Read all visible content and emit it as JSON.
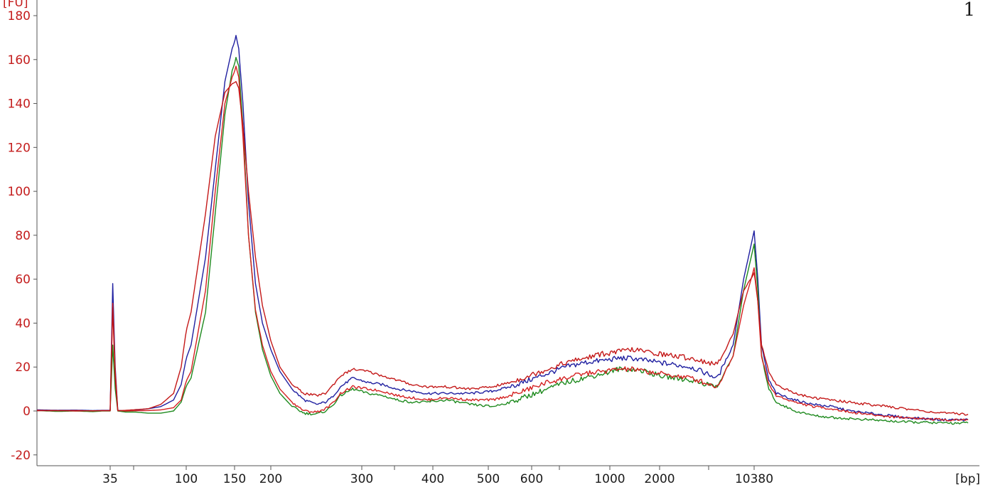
{
  "chart_data": {
    "type": "line",
    "ylabel": "[FU]",
    "xlabel": "[bp]",
    "corner_mark": "1",
    "ylim": [
      -25,
      180
    ],
    "yticks": [
      -20,
      0,
      20,
      40,
      60,
      80,
      100,
      120,
      140,
      160,
      180
    ],
    "xticks": [
      "35",
      "100",
      "150",
      "200",
      "300",
      "400",
      "500",
      "600",
      "1000",
      "2000",
      "10380"
    ],
    "grid": false,
    "legend": "none",
    "marker_peaks": [
      {
        "x": "35",
        "heights": {
          "blue": 58,
          "green": 30,
          "red": 49
        }
      },
      {
        "x": "10380",
        "heights": {
          "blue": 82,
          "green": 76,
          "red": 65
        }
      }
    ],
    "series": [
      {
        "color": "#1f1fa0",
        "points": [
          [
            -4.2,
            0.5
          ],
          [
            -3,
            0.3
          ],
          [
            -2,
            0.4
          ],
          [
            -1,
            0.2
          ],
          [
            -0.4,
            0.3
          ],
          [
            0,
            0.3
          ],
          [
            0.1,
            58
          ],
          [
            0.2,
            20
          ],
          [
            0.3,
            0.3
          ],
          [
            0.6,
            0
          ],
          [
            1,
            0.4
          ],
          [
            1.5,
            1
          ],
          [
            2,
            2
          ],
          [
            2.5,
            5
          ],
          [
            2.8,
            12
          ],
          [
            3.1,
            30
          ],
          [
            3.4,
            70
          ],
          [
            3.6,
            110
          ],
          [
            3.8,
            150
          ],
          [
            3.95,
            165
          ],
          [
            4.05,
            171
          ],
          [
            4.15,
            165
          ],
          [
            4.3,
            140
          ],
          [
            4.5,
            95
          ],
          [
            4.75,
            58
          ],
          [
            5,
            40
          ],
          [
            5.3,
            28
          ],
          [
            5.6,
            18
          ],
          [
            6,
            10
          ],
          [
            6.4,
            5
          ],
          [
            6.8,
            3
          ],
          [
            7.1,
            4
          ],
          [
            7.3,
            6
          ],
          [
            7.6,
            11
          ],
          [
            8,
            15
          ],
          [
            8.5,
            13
          ],
          [
            9,
            12
          ],
          [
            9.5,
            10
          ],
          [
            10,
            9
          ],
          [
            10.5,
            8
          ],
          [
            11,
            8
          ],
          [
            11.5,
            8
          ],
          [
            12,
            9
          ],
          [
            12.5,
            11
          ],
          [
            13,
            14
          ],
          [
            13.5,
            17
          ],
          [
            14,
            20
          ],
          [
            14.5,
            22
          ],
          [
            15,
            23
          ],
          [
            15.5,
            24
          ],
          [
            16,
            24
          ],
          [
            16.5,
            23
          ],
          [
            17,
            22
          ],
          [
            17.3,
            20
          ],
          [
            17.55,
            15
          ],
          [
            17.7,
            30
          ],
          [
            17.8,
            60
          ],
          [
            17.9,
            82
          ],
          [
            18,
            60
          ],
          [
            18.1,
            30
          ],
          [
            18.3,
            14
          ],
          [
            18.5,
            8
          ],
          [
            19,
            5
          ],
          [
            19.5,
            3
          ],
          [
            20,
            2
          ],
          [
            20.5,
            0
          ],
          [
            21,
            -1
          ],
          [
            21.5,
            -2
          ],
          [
            22,
            -3
          ],
          [
            22.5,
            -3.5
          ],
          [
            23,
            -4
          ],
          [
            23.7,
            -4
          ]
        ]
      },
      {
        "color": "#1e8a1e",
        "points": [
          [
            -4.2,
            0.2
          ],
          [
            -3,
            -0.2
          ],
          [
            -2,
            0
          ],
          [
            -1,
            -0.3
          ],
          [
            -0.4,
            0
          ],
          [
            0,
            0
          ],
          [
            0.1,
            30
          ],
          [
            0.2,
            10
          ],
          [
            0.3,
            0
          ],
          [
            0.6,
            -0.5
          ],
          [
            1,
            -0.5
          ],
          [
            1.5,
            -1
          ],
          [
            2,
            -1
          ],
          [
            2.5,
            0
          ],
          [
            2.8,
            4
          ],
          [
            3.1,
            15
          ],
          [
            3.4,
            45
          ],
          [
            3.6,
            90
          ],
          [
            3.8,
            135
          ],
          [
            3.95,
            155
          ],
          [
            4.05,
            161
          ],
          [
            4.15,
            157
          ],
          [
            4.3,
            130
          ],
          [
            4.5,
            80
          ],
          [
            4.75,
            45
          ],
          [
            5,
            28
          ],
          [
            5.3,
            16
          ],
          [
            5.6,
            8
          ],
          [
            6,
            2
          ],
          [
            6.4,
            -1
          ],
          [
            6.8,
            -1.5
          ],
          [
            7.1,
            0
          ],
          [
            7.3,
            2
          ],
          [
            7.6,
            7
          ],
          [
            8,
            10
          ],
          [
            8.5,
            8
          ],
          [
            9,
            7
          ],
          [
            9.5,
            5
          ],
          [
            10,
            4
          ],
          [
            10.5,
            4
          ],
          [
            11,
            5
          ],
          [
            11.5,
            3
          ],
          [
            12,
            2
          ],
          [
            12.5,
            4
          ],
          [
            13,
            7
          ],
          [
            13.5,
            10
          ],
          [
            14,
            13
          ],
          [
            14.5,
            15
          ],
          [
            15,
            17
          ],
          [
            15.5,
            19
          ],
          [
            16,
            19
          ],
          [
            16.5,
            18
          ],
          [
            17,
            16
          ],
          [
            17.3,
            14
          ],
          [
            17.55,
            11
          ],
          [
            17.7,
            25
          ],
          [
            17.8,
            55
          ],
          [
            17.9,
            76
          ],
          [
            18,
            55
          ],
          [
            18.1,
            25
          ],
          [
            18.3,
            10
          ],
          [
            18.5,
            4
          ],
          [
            19,
            0
          ],
          [
            19.5,
            -2
          ],
          [
            20,
            -3
          ],
          [
            20.5,
            -3.5
          ],
          [
            21,
            -4
          ],
          [
            21.5,
            -4.5
          ],
          [
            22,
            -5
          ],
          [
            22.5,
            -5.2
          ],
          [
            23,
            -5.5
          ],
          [
            23.7,
            -5.5
          ]
        ]
      },
      {
        "color": "#d42020",
        "points": [
          [
            -4.2,
            0.3
          ],
          [
            -3,
            0.1
          ],
          [
            -2,
            0.2
          ],
          [
            -1,
            0
          ],
          [
            -0.4,
            0.2
          ],
          [
            0,
            0.2
          ],
          [
            0.1,
            49
          ],
          [
            0.2,
            18
          ],
          [
            0.3,
            0.2
          ],
          [
            0.6,
            0
          ],
          [
            1,
            0.1
          ],
          [
            1.5,
            0.2
          ],
          [
            2,
            0.5
          ],
          [
            2.5,
            1.5
          ],
          [
            2.8,
            5
          ],
          [
            3.1,
            18
          ],
          [
            3.4,
            55
          ],
          [
            3.6,
            100
          ],
          [
            3.8,
            140
          ],
          [
            3.95,
            152
          ],
          [
            4.05,
            157
          ],
          [
            4.15,
            152
          ],
          [
            4.3,
            125
          ],
          [
            4.5,
            80
          ],
          [
            4.75,
            46
          ],
          [
            5,
            30
          ],
          [
            5.3,
            18
          ],
          [
            5.6,
            10
          ],
          [
            6,
            4
          ],
          [
            6.4,
            0
          ],
          [
            6.8,
            -0.5
          ],
          [
            7.1,
            1
          ],
          [
            7.3,
            3
          ],
          [
            7.6,
            8
          ],
          [
            8,
            11
          ],
          [
            8.5,
            10
          ],
          [
            9,
            9
          ],
          [
            9.5,
            7
          ],
          [
            10,
            6
          ],
          [
            10.5,
            5
          ],
          [
            11,
            6
          ],
          [
            11.5,
            5
          ],
          [
            12,
            5
          ],
          [
            12.5,
            7
          ],
          [
            13,
            10
          ],
          [
            13.5,
            13
          ],
          [
            14,
            15
          ],
          [
            14.5,
            17
          ],
          [
            15,
            18
          ],
          [
            15.5,
            19
          ],
          [
            16,
            19
          ],
          [
            16.5,
            18
          ],
          [
            17,
            17
          ],
          [
            17.3,
            15
          ],
          [
            17.55,
            11
          ],
          [
            17.7,
            25
          ],
          [
            17.8,
            48
          ],
          [
            17.9,
            65
          ],
          [
            18,
            50
          ],
          [
            18.1,
            25
          ],
          [
            18.3,
            12
          ],
          [
            18.5,
            7
          ],
          [
            19,
            4
          ],
          [
            19.5,
            2
          ],
          [
            20,
            1
          ],
          [
            20.5,
            -0.5
          ],
          [
            21,
            -1.5
          ],
          [
            21.5,
            -2.5
          ],
          [
            22,
            -3
          ],
          [
            22.5,
            -3.5
          ],
          [
            23,
            -4
          ],
          [
            23.7,
            -4
          ]
        ]
      },
      {
        "color": "#c41818",
        "points": [
          [
            -4.2,
            0.1
          ],
          [
            -3,
            0.2
          ],
          [
            -2,
            0
          ],
          [
            -1,
            0.1
          ],
          [
            -0.4,
            0.1
          ],
          [
            0,
            0.1
          ],
          [
            0.1,
            47
          ],
          [
            0.2,
            15
          ],
          [
            0.3,
            0.1
          ],
          [
            0.6,
            0.3
          ],
          [
            1,
            0.6
          ],
          [
            1.5,
            1
          ],
          [
            2,
            3
          ],
          [
            2.5,
            8
          ],
          [
            2.8,
            20
          ],
          [
            3.1,
            45
          ],
          [
            3.4,
            90
          ],
          [
            3.6,
            125
          ],
          [
            3.8,
            145
          ],
          [
            3.95,
            149
          ],
          [
            4.05,
            150
          ],
          [
            4.15,
            147
          ],
          [
            4.3,
            130
          ],
          [
            4.5,
            100
          ],
          [
            4.75,
            70
          ],
          [
            5,
            48
          ],
          [
            5.3,
            32
          ],
          [
            5.6,
            20
          ],
          [
            6,
            12
          ],
          [
            6.4,
            8
          ],
          [
            6.8,
            7
          ],
          [
            7.1,
            8
          ],
          [
            7.3,
            11
          ],
          [
            7.6,
            16
          ],
          [
            8,
            19
          ],
          [
            8.5,
            18
          ],
          [
            9,
            16
          ],
          [
            9.5,
            14
          ],
          [
            10,
            12
          ],
          [
            10.5,
            11
          ],
          [
            11,
            11
          ],
          [
            11.5,
            10
          ],
          [
            12,
            11
          ],
          [
            12.5,
            13
          ],
          [
            13,
            16
          ],
          [
            13.5,
            19
          ],
          [
            14,
            22
          ],
          [
            14.5,
            24
          ],
          [
            15,
            26
          ],
          [
            15.5,
            27
          ],
          [
            16,
            28
          ],
          [
            16.5,
            27
          ],
          [
            17,
            26
          ],
          [
            17.3,
            24
          ],
          [
            17.55,
            21
          ],
          [
            17.7,
            35
          ],
          [
            17.8,
            55
          ],
          [
            17.9,
            63
          ],
          [
            18,
            50
          ],
          [
            18.1,
            30
          ],
          [
            18.3,
            18
          ],
          [
            18.5,
            12
          ],
          [
            19,
            8
          ],
          [
            19.5,
            6
          ],
          [
            20,
            5
          ],
          [
            20.5,
            4
          ],
          [
            21,
            3
          ],
          [
            21.5,
            2
          ],
          [
            22,
            1
          ],
          [
            22.5,
            0
          ],
          [
            23,
            -1
          ],
          [
            23.7,
            -1.5
          ]
        ]
      }
    ]
  }
}
